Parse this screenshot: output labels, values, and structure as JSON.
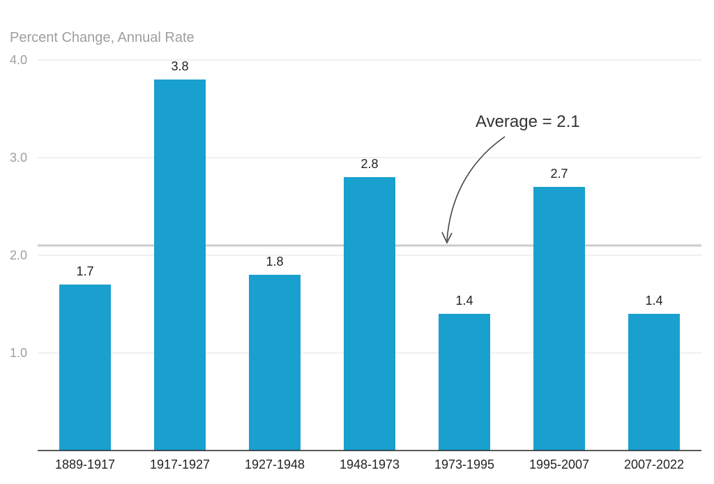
{
  "chart_data": {
    "type": "bar",
    "ylabel": "Percent Change, Annual Rate",
    "categories": [
      "1889-1917",
      "1917-1927",
      "1927-1948",
      "1948-1973",
      "1973-1995",
      "1995-2007",
      "2007-2022"
    ],
    "values": [
      1.7,
      3.8,
      1.8,
      2.8,
      1.4,
      2.7,
      1.4
    ],
    "data_labels": [
      "1.7",
      "3.8",
      "1.8",
      "2.8",
      "1.4",
      "2.7",
      "1.4"
    ],
    "yticks": [
      1.0,
      2.0,
      3.0,
      4.0
    ],
    "ytick_labels": [
      "1.0",
      "2.0",
      "3.0",
      "4.0"
    ],
    "ylim": [
      0,
      4.0
    ],
    "grid": true,
    "reference_line": {
      "value": 2.1,
      "label": "Average = 2.1"
    },
    "colors": {
      "bar": "#19a0cf",
      "grid": "#e2e2e2",
      "reference": "#cccccc",
      "axis": "#222222"
    }
  }
}
